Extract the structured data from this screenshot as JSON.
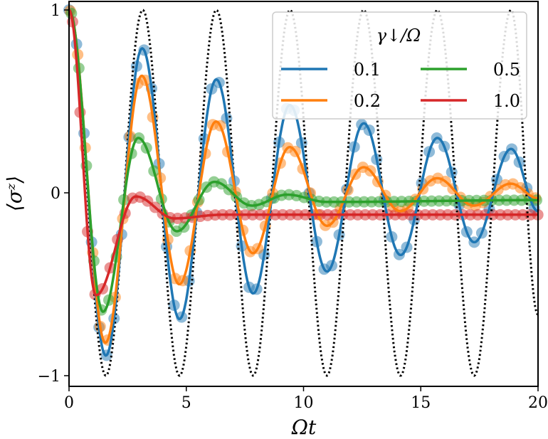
{
  "chart_data": {
    "type": "line",
    "xlabel": "Ωt",
    "ylabel": "⟨σᶻ⟩",
    "xlim": [
      0,
      20
    ],
    "ylim": [
      -1.05,
      1.05
    ],
    "xticks": [
      "0",
      "5",
      "10",
      "15",
      "20"
    ],
    "yticks": [
      "−1",
      "0",
      "1"
    ],
    "xtick_values": [
      0,
      5,
      10,
      15,
      20
    ],
    "ytick_values": [
      -1,
      0,
      1
    ],
    "grid": false,
    "legend": {
      "title": "γ↓/Ω",
      "placement": "top-right",
      "columns": 2
    },
    "reference": {
      "style": "dotted",
      "color": "#000000",
      "extrema": [
        [
          0,
          1
        ],
        [
          1.571,
          -1
        ],
        [
          3.142,
          1
        ],
        [
          4.712,
          -1
        ],
        [
          6.283,
          1
        ],
        [
          7.854,
          -1
        ],
        [
          9.425,
          1
        ],
        [
          10.996,
          -1
        ],
        [
          12.566,
          1
        ],
        [
          14.137,
          -1
        ],
        [
          15.708,
          1
        ],
        [
          17.279,
          -1
        ],
        [
          18.85,
          1
        ],
        [
          20,
          -0.667
        ]
      ]
    },
    "series": [
      {
        "name": "0.1",
        "color": "#1f77b4",
        "extrema": [
          [
            0,
            1
          ],
          [
            1.57,
            -0.89
          ],
          [
            3.12,
            0.79
          ],
          [
            4.71,
            -0.69
          ],
          [
            6.28,
            0.62
          ],
          [
            7.85,
            -0.55
          ],
          [
            9.42,
            0.48
          ],
          [
            11.0,
            -0.43
          ],
          [
            12.57,
            0.38
          ],
          [
            14.14,
            -0.34
          ],
          [
            15.71,
            0.3
          ],
          [
            17.28,
            -0.27
          ],
          [
            18.85,
            0.24
          ],
          [
            20,
            -0.1
          ]
        ]
      },
      {
        "name": "0.2",
        "color": "#ff7f0e",
        "extrema": [
          [
            0,
            1
          ],
          [
            1.55,
            -0.82
          ],
          [
            3.1,
            0.64
          ],
          [
            4.7,
            -0.5
          ],
          [
            6.27,
            0.39
          ],
          [
            7.84,
            -0.33
          ],
          [
            9.41,
            0.25
          ],
          [
            11.0,
            -0.18
          ],
          [
            12.56,
            0.14
          ],
          [
            14.13,
            -0.1
          ],
          [
            15.7,
            0.08
          ],
          [
            17.27,
            -0.07
          ],
          [
            18.84,
            0.05
          ],
          [
            20,
            -0.03
          ]
        ]
      },
      {
        "name": "0.5",
        "color": "#2ca02c",
        "extrema": [
          [
            0,
            1
          ],
          [
            1.45,
            -0.65
          ],
          [
            2.95,
            0.3
          ],
          [
            4.6,
            -0.21
          ],
          [
            6.2,
            0.06
          ],
          [
            7.8,
            -0.07
          ],
          [
            9.3,
            -0.01
          ],
          [
            11.0,
            -0.05
          ],
          [
            20,
            -0.04
          ]
        ]
      },
      {
        "name": "1.0",
        "color": "#d62728",
        "extrema": [
          [
            0,
            1
          ],
          [
            1.15,
            -0.56
          ],
          [
            2.85,
            -0.02
          ],
          [
            4.5,
            -0.14
          ],
          [
            6.5,
            -0.12
          ],
          [
            20,
            -0.12
          ]
        ]
      }
    ]
  }
}
